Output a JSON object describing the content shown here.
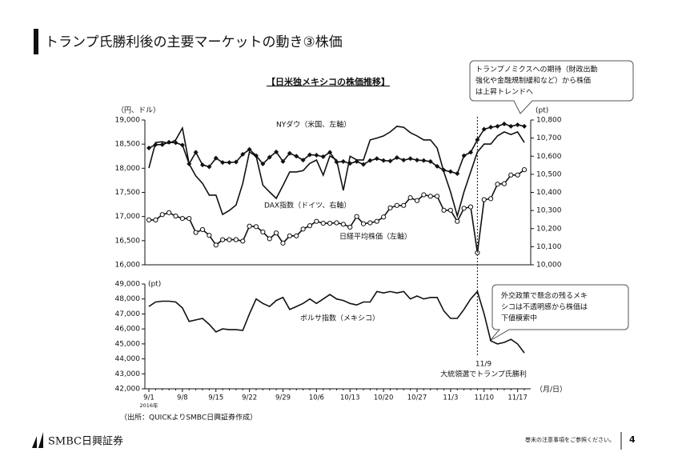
{
  "page": {
    "title": "トランプ氏勝利後の主要マーケットの動き③株価",
    "chart_heading": "【日米独メキシコの株価推移】",
    "callout_top": [
      "トランプノミクスへの期待（財政出動",
      "強化や金融規制緩和など）から株価",
      "は上昇トレンドへ"
    ],
    "callout_bottom": [
      "外交政策で懸念の残るメキ",
      "シコは不透明感から株価は",
      "下値模索中"
    ],
    "event": [
      "11/9",
      "大統領選でトランプ氏勝利"
    ],
    "source": "（出所：QUICKよりSMBC日興証券作成）",
    "logo": "SMBC日興証券",
    "disclaimer": "巻末の注意事項をご参照ください。",
    "page_number": "4"
  },
  "chart_data": [
    {
      "type": "line",
      "y_unit": "（円、ドル）",
      "y2_unit": "(pt)",
      "ylim": [
        16000,
        19000
      ],
      "yticks": [
        {
          "value": 16000,
          "label": "16,000"
        },
        {
          "value": 16500,
          "label": "16,500"
        },
        {
          "value": 17000,
          "label": "17,000"
        },
        {
          "value": 17500,
          "label": "17,500"
        },
        {
          "value": 18000,
          "label": "18,000"
        },
        {
          "value": 18500,
          "label": "18,500"
        },
        {
          "value": 19000,
          "label": "19,000"
        }
      ],
      "y2lim": [
        10000,
        10800
      ],
      "y2ticks": [
        {
          "value": 10000,
          "label": "10,000"
        },
        {
          "value": 10100,
          "label": "10,100"
        },
        {
          "value": 10200,
          "label": "10,200"
        },
        {
          "value": 10300,
          "label": "10,300"
        },
        {
          "value": 10400,
          "label": "10,400"
        },
        {
          "value": 10500,
          "label": "10,500"
        },
        {
          "value": 10600,
          "label": "10,600"
        },
        {
          "value": 10700,
          "label": "10,700"
        },
        {
          "value": 10800,
          "label": "10,800"
        }
      ],
      "series": [
        {
          "name": "NYダウ（米国、左軸）",
          "color": "#111111",
          "marker": "diamond",
          "values": [
            18420,
            18490,
            18490,
            18540,
            18530,
            18480,
            18090,
            18330,
            18070,
            18030,
            18210,
            18120,
            18120,
            18130,
            18290,
            18390,
            18260,
            18090,
            18230,
            18340,
            18140,
            18310,
            18250,
            18170,
            18280,
            18270,
            18240,
            18330,
            18130,
            18140,
            18100,
            18140,
            18080,
            18160,
            18200,
            18160,
            18150,
            18220,
            18170,
            18200,
            18170,
            18160,
            18140,
            18040,
            17960,
            17930,
            17890,
            18260,
            18330,
            18590,
            18810,
            18850,
            18870,
            18920,
            18870,
            18900,
            18870
          ]
        },
        {
          "name": "DAX指数（ドイツ、右軸）",
          "color": "#111111",
          "marker": "none",
          "axis": "y2",
          "values": [
            10535,
            10676,
            10680,
            10670,
            10690,
            10756,
            10557,
            10491,
            10450,
            10385,
            10385,
            10278,
            10300,
            10330,
            10450,
            10623,
            10600,
            10440,
            10402,
            10367,
            10438,
            10513,
            10513,
            10520,
            10560,
            10579,
            10495,
            10601,
            10579,
            10411,
            10600,
            10580,
            10579,
            10690,
            10700,
            10712,
            10734,
            10765,
            10760,
            10730,
            10712,
            10690,
            10690,
            10645,
            10513,
            10402,
            10270,
            10402,
            10513,
            10623,
            10667,
            10667,
            10712,
            10734,
            10720,
            10734,
            10676
          ]
        },
        {
          "name": "日経平均株価（左軸）",
          "color": "#111111",
          "marker": "circle",
          "values": [
            16930,
            16930,
            17040,
            17080,
            17010,
            16960,
            16960,
            16670,
            16730,
            16610,
            16410,
            16520,
            16520,
            16520,
            16490,
            16800,
            16790,
            16680,
            16540,
            16660,
            16450,
            16600,
            16600,
            16740,
            16810,
            16900,
            16860,
            16860,
            16870,
            16840,
            16780,
            17000,
            16850,
            16870,
            16900,
            16990,
            17180,
            17230,
            17230,
            17390,
            17330,
            17450,
            17420,
            17420,
            17130,
            17130,
            16900,
            17170,
            17200,
            16250,
            17350,
            17370,
            17670,
            17680,
            17860,
            17860,
            17970
          ]
        }
      ]
    },
    {
      "type": "line",
      "y_unit": "(pt)",
      "x_unit": "（月/日）",
      "x_note": "2016年",
      "categories": [
        "9/1",
        null,
        null,
        null,
        null,
        "9/8",
        null,
        null,
        null,
        null,
        "9/15",
        null,
        null,
        null,
        null,
        "9/22",
        null,
        null,
        null,
        null,
        "9/29",
        null,
        null,
        null,
        null,
        "10/6",
        null,
        null,
        null,
        null,
        "10/13",
        null,
        null,
        null,
        null,
        "10/20",
        null,
        null,
        null,
        null,
        "10/27",
        null,
        null,
        null,
        null,
        "11/3",
        null,
        null,
        null,
        null,
        "11/10",
        null,
        null,
        null,
        null,
        "11/17",
        null
      ],
      "ylim": [
        42000,
        49000
      ],
      "yticks": [
        {
          "value": 42000,
          "label": "42,000"
        },
        {
          "value": 43000,
          "label": "43,000"
        },
        {
          "value": 44000,
          "label": "44,000"
        },
        {
          "value": 45000,
          "label": "45,000"
        },
        {
          "value": 46000,
          "label": "46,000"
        },
        {
          "value": 47000,
          "label": "47,000"
        },
        {
          "value": 48000,
          "label": "48,000"
        },
        {
          "value": 49000,
          "label": "49,000"
        }
      ],
      "series": [
        {
          "name": "ボルサ指数（メキシコ）",
          "color": "#111111",
          "marker": "none",
          "values": [
            47500,
            47800,
            47850,
            47850,
            47800,
            47400,
            46500,
            46600,
            46700,
            46300,
            45800,
            46000,
            45950,
            45950,
            45900,
            47000,
            48000,
            47700,
            47500,
            47900,
            48100,
            47300,
            47500,
            47700,
            48000,
            47700,
            48000,
            48300,
            48000,
            47900,
            47700,
            47600,
            47800,
            47800,
            48500,
            48400,
            48500,
            48400,
            48500,
            48000,
            48200,
            48000,
            48100,
            48100,
            47200,
            46700,
            46700,
            47300,
            48000,
            48500,
            47000,
            45200,
            45000,
            45100,
            45300,
            45000,
            44400
          ]
        }
      ]
    }
  ]
}
